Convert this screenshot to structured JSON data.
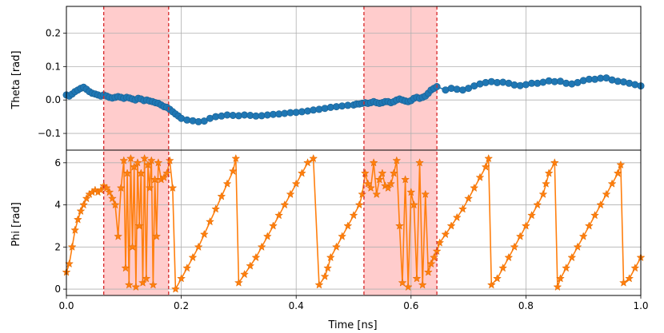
{
  "chart_data": {
    "type": "line",
    "xlabel": "Time [ns]",
    "xlim": [
      0,
      1
    ],
    "x_ticks": [
      "0.0",
      "0.2",
      "0.4",
      "0.6",
      "0.8",
      "1.0"
    ],
    "shaded_intervals": [
      [
        0.065,
        0.178
      ],
      [
        0.518,
        0.645
      ]
    ],
    "shade_color": "#ffcccc",
    "boundary_line_color": "#d62728",
    "panels": [
      {
        "ylabel": "Theta [rad]",
        "ylim": [
          -0.15,
          0.28
        ],
        "y_ticks": [
          "0.2",
          "0.1",
          "0.0",
          "−0.1"
        ],
        "y_tick_values": [
          0.2,
          0.1,
          0.0,
          -0.1
        ],
        "grid": true,
        "series": [
          {
            "color": "#1f77b4",
            "marker": "circle",
            "x": [
              0.0,
              0.005,
              0.01,
              0.015,
              0.02,
              0.025,
              0.03,
              0.035,
              0.04,
              0.045,
              0.05,
              0.055,
              0.06,
              0.065,
              0.07,
              0.075,
              0.08,
              0.085,
              0.09,
              0.095,
              0.1,
              0.105,
              0.11,
              0.115,
              0.12,
              0.125,
              0.13,
              0.135,
              0.14,
              0.145,
              0.15,
              0.155,
              0.16,
              0.165,
              0.17,
              0.175,
              0.18,
              0.185,
              0.19,
              0.195,
              0.2,
              0.21,
              0.22,
              0.23,
              0.24,
              0.25,
              0.26,
              0.27,
              0.28,
              0.29,
              0.3,
              0.31,
              0.32,
              0.33,
              0.34,
              0.35,
              0.36,
              0.37,
              0.38,
              0.39,
              0.4,
              0.41,
              0.42,
              0.43,
              0.44,
              0.45,
              0.46,
              0.47,
              0.48,
              0.49,
              0.5,
              0.505,
              0.51,
              0.515,
              0.52,
              0.525,
              0.53,
              0.535,
              0.54,
              0.545,
              0.55,
              0.555,
              0.56,
              0.565,
              0.57,
              0.575,
              0.58,
              0.585,
              0.59,
              0.595,
              0.6,
              0.605,
              0.61,
              0.615,
              0.62,
              0.625,
              0.63,
              0.635,
              0.64,
              0.645,
              0.66,
              0.67,
              0.68,
              0.69,
              0.7,
              0.71,
              0.72,
              0.73,
              0.74,
              0.75,
              0.76,
              0.77,
              0.78,
              0.79,
              0.8,
              0.81,
              0.82,
              0.83,
              0.84,
              0.85,
              0.86,
              0.87,
              0.88,
              0.89,
              0.9,
              0.91,
              0.92,
              0.93,
              0.94,
              0.95,
              0.96,
              0.97,
              0.98,
              0.99,
              1.0
            ],
            "y": [
              0.015,
              0.012,
              0.018,
              0.025,
              0.03,
              0.035,
              0.038,
              0.032,
              0.025,
              0.02,
              0.018,
              0.015,
              0.012,
              0.015,
              0.012,
              0.008,
              0.006,
              0.008,
              0.01,
              0.008,
              0.005,
              0.008,
              0.006,
              0.003,
              0.0,
              0.005,
              0.003,
              -0.002,
              0.0,
              -0.003,
              -0.005,
              -0.008,
              -0.01,
              -0.015,
              -0.02,
              -0.022,
              -0.028,
              -0.035,
              -0.042,
              -0.048,
              -0.055,
              -0.06,
              -0.062,
              -0.065,
              -0.063,
              -0.055,
              -0.05,
              -0.048,
              -0.045,
              -0.046,
              -0.047,
              -0.045,
              -0.046,
              -0.048,
              -0.047,
              -0.045,
              -0.043,
              -0.042,
              -0.04,
              -0.038,
              -0.037,
              -0.035,
              -0.033,
              -0.03,
              -0.028,
              -0.025,
              -0.022,
              -0.02,
              -0.018,
              -0.016,
              -0.015,
              -0.012,
              -0.012,
              -0.01,
              -0.008,
              -0.01,
              -0.008,
              -0.005,
              -0.008,
              -0.01,
              -0.008,
              -0.005,
              -0.005,
              -0.008,
              -0.005,
              0.0,
              0.003,
              0.0,
              -0.003,
              -0.005,
              -0.002,
              0.005,
              0.008,
              0.005,
              0.008,
              0.012,
              0.02,
              0.03,
              0.035,
              0.04,
              0.03,
              0.035,
              0.032,
              0.03,
              0.035,
              0.042,
              0.048,
              0.052,
              0.055,
              0.052,
              0.053,
              0.05,
              0.045,
              0.043,
              0.046,
              0.05,
              0.05,
              0.053,
              0.057,
              0.055,
              0.056,
              0.05,
              0.048,
              0.052,
              0.058,
              0.062,
              0.062,
              0.065,
              0.066,
              0.06,
              0.056,
              0.054,
              0.05,
              0.046,
              0.042
            ]
          }
        ]
      },
      {
        "ylabel": "Phi [rad]",
        "ylim": [
          -0.3,
          6.6
        ],
        "y_ticks": [
          "6",
          "4",
          "2",
          "0"
        ],
        "y_tick_values": [
          6,
          4,
          2,
          0
        ],
        "grid": true,
        "series": [
          {
            "color": "#ff7f0e",
            "marker": "star",
            "x": [
              0.0,
              0.005,
              0.01,
              0.015,
              0.02,
              0.025,
              0.03,
              0.035,
              0.04,
              0.045,
              0.05,
              0.055,
              0.06,
              0.065,
              0.07,
              0.075,
              0.08,
              0.085,
              0.09,
              0.095,
              0.1,
              0.103,
              0.106,
              0.109,
              0.112,
              0.115,
              0.118,
              0.121,
              0.124,
              0.127,
              0.13,
              0.133,
              0.136,
              0.139,
              0.142,
              0.145,
              0.148,
              0.151,
              0.154,
              0.157,
              0.16,
              0.165,
              0.17,
              0.175,
              0.18,
              0.185,
              0.19,
              0.2,
              0.21,
              0.22,
              0.23,
              0.24,
              0.25,
              0.26,
              0.27,
              0.28,
              0.29,
              0.295,
              0.3,
              0.31,
              0.32,
              0.33,
              0.34,
              0.35,
              0.36,
              0.37,
              0.38,
              0.39,
              0.4,
              0.41,
              0.42,
              0.43,
              0.44,
              0.45,
              0.455,
              0.46,
              0.47,
              0.48,
              0.49,
              0.5,
              0.51,
              0.515,
              0.52,
              0.525,
              0.53,
              0.535,
              0.54,
              0.545,
              0.55,
              0.555,
              0.56,
              0.565,
              0.57,
              0.575,
              0.58,
              0.585,
              0.59,
              0.595,
              0.6,
              0.605,
              0.61,
              0.615,
              0.62,
              0.625,
              0.63,
              0.635,
              0.64,
              0.645,
              0.65,
              0.66,
              0.67,
              0.68,
              0.69,
              0.7,
              0.71,
              0.72,
              0.73,
              0.735,
              0.74,
              0.75,
              0.76,
              0.77,
              0.78,
              0.79,
              0.8,
              0.81,
              0.82,
              0.83,
              0.835,
              0.84,
              0.85,
              0.855,
              0.86,
              0.87,
              0.88,
              0.89,
              0.9,
              0.91,
              0.92,
              0.93,
              0.94,
              0.95,
              0.96,
              0.965,
              0.97,
              0.98,
              0.99,
              1.0
            ],
            "y": [
              0.8,
              1.2,
              2.0,
              2.8,
              3.3,
              3.7,
              4.0,
              4.3,
              4.5,
              4.6,
              4.7,
              4.6,
              4.7,
              4.9,
              4.8,
              4.6,
              4.3,
              4.0,
              2.5,
              4.8,
              6.1,
              1.0,
              5.5,
              0.2,
              6.2,
              2.0,
              5.8,
              0.1,
              6.0,
              3.0,
              5.5,
              0.3,
              6.2,
              0.5,
              5.9,
              4.8,
              6.1,
              0.2,
              5.2,
              2.5,
              6.0,
              5.2,
              5.3,
              5.5,
              6.1,
              4.8,
              0.0,
              0.5,
              1.0,
              1.5,
              2.0,
              2.6,
              3.2,
              3.8,
              4.4,
              5.0,
              5.6,
              6.2,
              0.3,
              0.7,
              1.1,
              1.5,
              2.0,
              2.5,
              3.0,
              3.5,
              4.0,
              4.5,
              5.0,
              5.5,
              6.0,
              6.2,
              0.2,
              0.6,
              1.0,
              1.5,
              2.0,
              2.5,
              3.0,
              3.5,
              4.0,
              4.5,
              5.5,
              5.0,
              4.8,
              6.0,
              4.5,
              5.2,
              5.5,
              4.9,
              4.8,
              5.0,
              5.5,
              6.1,
              3.0,
              0.3,
              5.2,
              0.1,
              4.6,
              4.0,
              0.5,
              6.0,
              0.2,
              4.5,
              0.8,
              1.2,
              1.5,
              1.8,
              2.2,
              2.6,
              3.0,
              3.4,
              3.8,
              4.3,
              4.8,
              5.3,
              5.8,
              6.2,
              0.2,
              0.5,
              1.0,
              1.5,
              2.0,
              2.5,
              3.0,
              3.5,
              4.0,
              4.5,
              5.0,
              5.5,
              6.0,
              0.1,
              0.5,
              1.0,
              1.5,
              2.0,
              2.5,
              3.0,
              3.5,
              4.0,
              4.5,
              5.0,
              5.5,
              5.9,
              0.3,
              0.5,
              1.0,
              1.5
            ]
          }
        ]
      }
    ]
  }
}
